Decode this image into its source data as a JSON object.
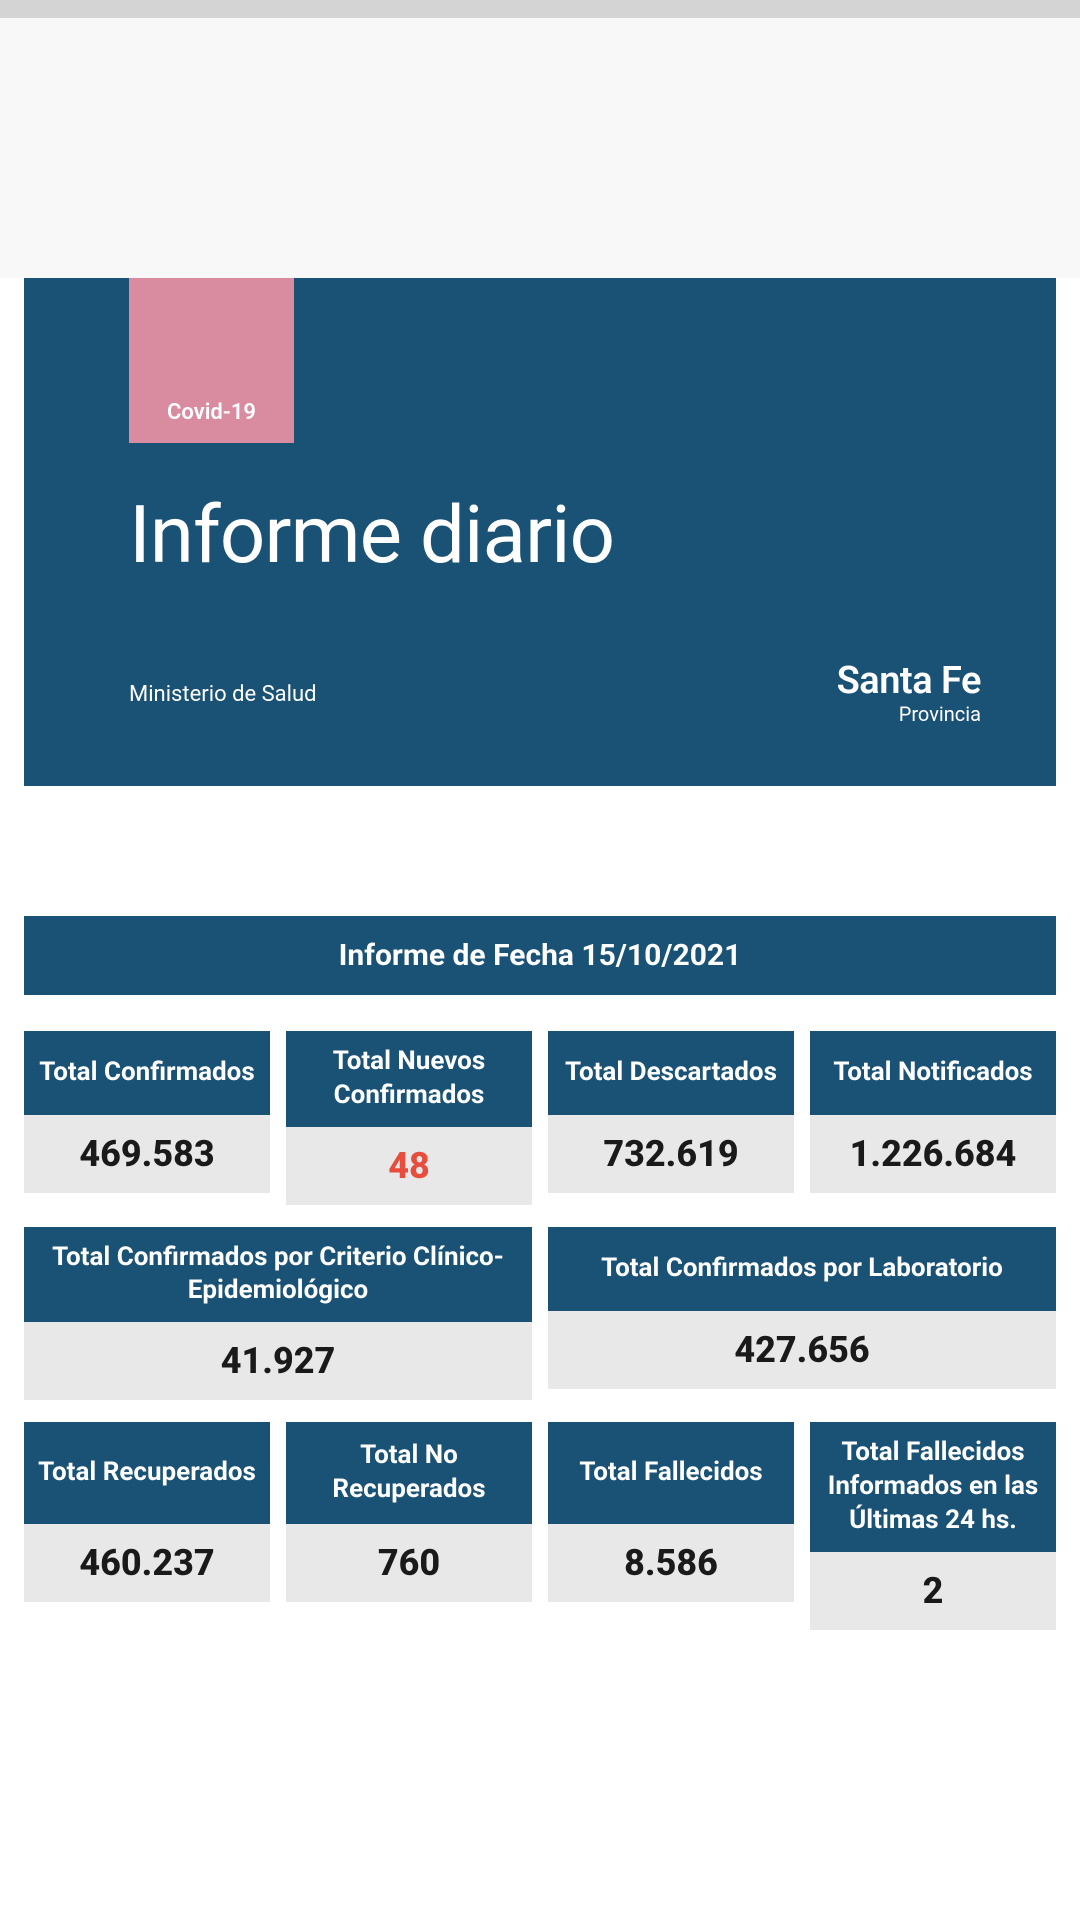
{
  "colors": {
    "primary_blue": "#1a5276",
    "pink_accent": "#d98ba0",
    "value_bg": "#e8e8e8",
    "highlight_red": "#e74c3c",
    "white": "#ffffff",
    "text_dark": "#1a1a1a"
  },
  "header": {
    "tag": "Covid-19",
    "title": "Informe diario",
    "ministry": "Ministerio de Salud",
    "logo_main": "Santa Fe",
    "logo_sub": "Provincia"
  },
  "date_banner": "Informe de Fecha 15/10/2021",
  "row1": [
    {
      "label": "Total Confirmados",
      "value": "469.583",
      "highlight": false
    },
    {
      "label": "Total Nuevos Confirmados",
      "value": "48",
      "highlight": true
    },
    {
      "label": "Total Descartados",
      "value": "732.619",
      "highlight": false
    },
    {
      "label": "Total Notificados",
      "value": "1.226.684",
      "highlight": false
    }
  ],
  "row2": [
    {
      "label": "Total Confirmados por Criterio Clínico-Epidemiológico",
      "value": "41.927"
    },
    {
      "label": "Total Confirmados por Laboratorio",
      "value": "427.656"
    }
  ],
  "row3": [
    {
      "label": "Total Recuperados",
      "value": "460.237"
    },
    {
      "label": "Total No Recuperados",
      "value": "760"
    },
    {
      "label": "Total Fallecidos",
      "value": "8.586"
    },
    {
      "label": "Total Fallecidos Informados en las Últimas 24 hs.",
      "value": "2"
    }
  ],
  "footer_logo": "Santa Fe"
}
